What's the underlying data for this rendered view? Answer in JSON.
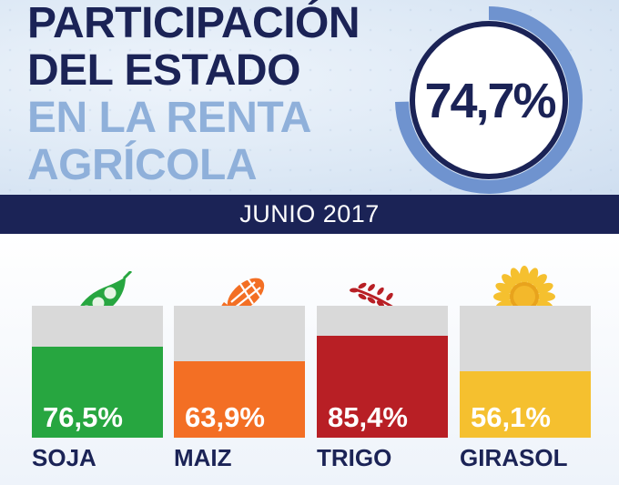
{
  "title": {
    "line1": "PARTICIPACIÓN",
    "line2": "DEL ESTADO",
    "line3": "EN LA RENTA",
    "line4": "AGRÍCOLA"
  },
  "headline": {
    "value": 74.7,
    "label": "74,7%"
  },
  "band": {
    "label": "JUNIO 2017"
  },
  "colors": {
    "navy": "#1b2356",
    "light_blue": "#8fb0da",
    "ring": "#6f93cf",
    "track": "#d9d9d9",
    "soja": "#27a640",
    "maiz": "#f36f24",
    "trigo": "#b81f25",
    "girasol": "#f5c02f"
  },
  "chart_data": {
    "type": "bar",
    "categories": [
      "SOJA",
      "MAIZ",
      "TRIGO",
      "GIRASOL"
    ],
    "values": [
      76.5,
      63.9,
      85.4,
      56.1
    ],
    "value_labels": [
      "76,5%",
      "63,9%",
      "85,4%",
      "56,1%"
    ],
    "icons": [
      "soybean-pod-icon",
      "corn-icon",
      "wheat-icon",
      "sunflower-icon"
    ],
    "ylim": [
      0,
      100
    ]
  }
}
